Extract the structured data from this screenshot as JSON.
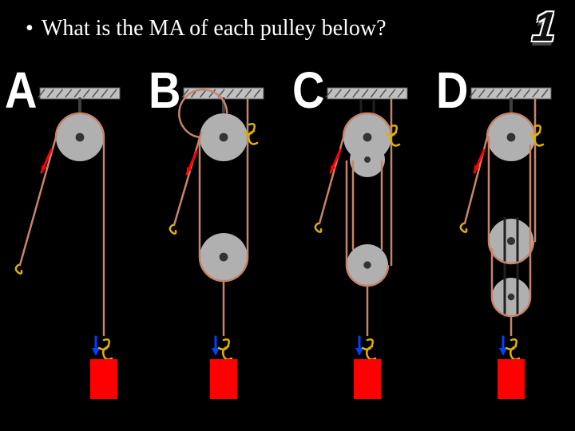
{
  "slide": {
    "question": "What is the MA of each pulley below?",
    "number": "1",
    "panels": [
      {
        "label": "A"
      },
      {
        "label": "B"
      },
      {
        "label": "C"
      },
      {
        "label": "D"
      }
    ]
  },
  "style": {
    "colors": {
      "background": "#000000",
      "text": "#ffffff",
      "ceiling_fill": "#c0c0c0",
      "ceiling_stroke": "#555555",
      "hatch": "#555555",
      "pulley_wheel": "#b0b0b0",
      "pulley_axle": "#333333",
      "rope": "#c8836a",
      "effort_arrow": "#ff0000",
      "hook_effort": "#e0b000",
      "hook_load": "#e0b000",
      "load_block": "#ff0000",
      "load_arrow": "#0040ff",
      "load_hook": "#e0b000",
      "bracket": "#202020"
    },
    "dims": {
      "ceiling_w": 100,
      "ceiling_h": 14,
      "pulley_r_large": 30,
      "pulley_r_small": 18,
      "load_w": 34,
      "load_h": 50,
      "rope_w": 2.5
    }
  },
  "diagrams": {
    "A": {
      "type": "fixed-single",
      "movable_pulleys": 0,
      "supporting_ropes": 1
    },
    "B": {
      "type": "fixed-plus-movable",
      "movable_pulleys": 1,
      "supporting_ropes": 2
    },
    "C": {
      "type": "fixed-2-movable-1",
      "movable_pulleys": 1,
      "supporting_ropes": 3
    },
    "D": {
      "type": "fixed-1-movable-2",
      "movable_pulleys": 2,
      "supporting_ropes": 3
    }
  }
}
